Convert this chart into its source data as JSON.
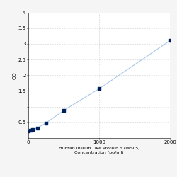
{
  "x_data": [
    0,
    31.25,
    62.5,
    125,
    250,
    500,
    1000,
    2000
  ],
  "y_data": [
    0.22,
    0.25,
    0.27,
    0.32,
    0.48,
    0.88,
    1.57,
    3.1
  ],
  "xlabel_line1": "Human Insulin Like Protein 5 (INSL5)",
  "xlabel_line2": "Concentration (pg/ml)",
  "ylabel": "OD",
  "xlim": [
    0,
    2000
  ],
  "ylim": [
    0,
    4
  ],
  "yticks": [
    0.5,
    1.0,
    1.5,
    2.0,
    2.5,
    3.0,
    3.5,
    4.0
  ],
  "ytick_labels": [
    "0.5",
    "1",
    "1.5",
    "2",
    "2.5",
    "3",
    "3.5",
    "4"
  ],
  "xticks": [
    0,
    1000,
    2000
  ],
  "xtick_labels": [
    "0",
    "1000",
    "2000"
  ],
  "grid_color": "#c8c8c8",
  "line_color": "#a8c8e8",
  "marker_color": "#00205b",
  "bg_color": "#f5f5f5",
  "plot_bg_color": "#ffffff",
  "font_size": 5,
  "ylabel_fontsize": 5,
  "xlabel_fontsize": 4.5
}
